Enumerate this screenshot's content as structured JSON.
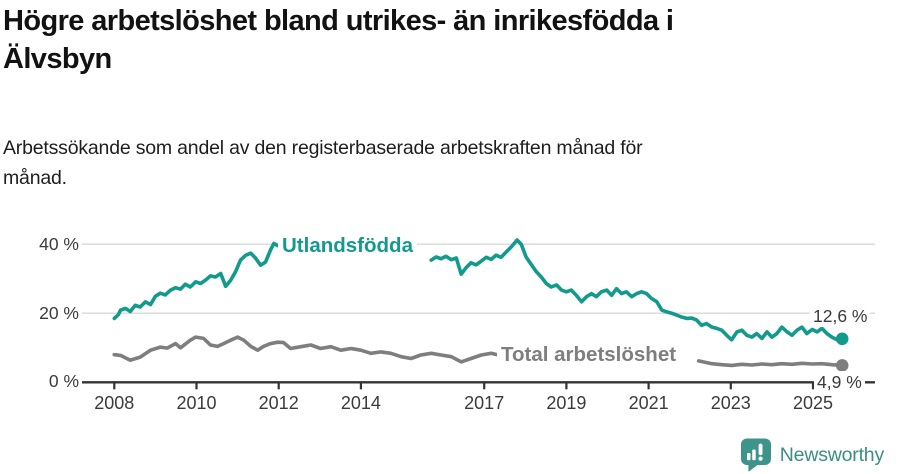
{
  "header": {
    "title_lines": [
      "Högre arbetslöshet bland utrikes- än inrikesfödda i",
      "Älvsbyn"
    ],
    "subtitle_lines": [
      "Arbetssökande som andel av den registerbaserade arbetskraften månad för",
      "månad."
    ]
  },
  "chart_data": {
    "type": "line",
    "title": "Högre arbetslöshet bland utrikes- än inrikesfödda i Älvsbyn",
    "subtitle": "Arbetssökande som andel av den registerbaserade arbetskraften månad för månad.",
    "xlabel": "",
    "ylabel": "",
    "xlim": [
      2007.9,
      2025.95
    ],
    "ylim": [
      0,
      43
    ],
    "grid": "horizontal",
    "legend_position": "inline-labels",
    "yticks": [
      {
        "value": 0,
        "label": "0 %"
      },
      {
        "value": 20,
        "label": "20 %"
      },
      {
        "value": 40,
        "label": "40 %"
      }
    ],
    "xticks": [
      {
        "value": 2008,
        "label": "2008"
      },
      {
        "value": 2010,
        "label": "2010"
      },
      {
        "value": 2012,
        "label": "2012"
      },
      {
        "value": 2014,
        "label": "2014"
      },
      {
        "value": 2017,
        "label": "2017"
      },
      {
        "value": 2019,
        "label": "2019"
      },
      {
        "value": 2021,
        "label": "2021"
      },
      {
        "value": 2023,
        "label": "2023"
      },
      {
        "value": 2025,
        "label": "2025"
      }
    ],
    "colors": {
      "utlandsfodda": "#129A8D",
      "total": "#7E7E7E",
      "grid": "#D8D8D8",
      "axis": "#333333"
    },
    "series": [
      {
        "name": "Utlandsfödda",
        "color": "#129A8D",
        "end_value": 12.6,
        "end_label": "12,6 %",
        "segments": [
          [
            [
              2008.0,
              18.5
            ],
            [
              2008.1,
              19.6
            ],
            [
              2008.15,
              20.9
            ],
            [
              2008.27,
              21.4
            ],
            [
              2008.39,
              20.5
            ],
            [
              2008.51,
              22.3
            ],
            [
              2008.63,
              21.8
            ],
            [
              2008.76,
              23.3
            ],
            [
              2008.88,
              22.5
            ],
            [
              2009.0,
              24.9
            ],
            [
              2009.12,
              25.8
            ],
            [
              2009.24,
              25.3
            ],
            [
              2009.37,
              26.7
            ],
            [
              2009.49,
              27.4
            ],
            [
              2009.61,
              27.0
            ],
            [
              2009.73,
              28.4
            ],
            [
              2009.85,
              27.6
            ],
            [
              2009.98,
              29.1
            ],
            [
              2010.1,
              28.6
            ],
            [
              2010.22,
              29.6
            ],
            [
              2010.34,
              30.8
            ],
            [
              2010.46,
              30.5
            ],
            [
              2010.59,
              31.5
            ],
            [
              2010.71,
              27.8
            ],
            [
              2010.83,
              29.5
            ],
            [
              2010.95,
              32.0
            ],
            [
              2011.07,
              35.4
            ],
            [
              2011.2,
              36.8
            ],
            [
              2011.32,
              37.4
            ],
            [
              2011.44,
              35.9
            ],
            [
              2011.56,
              33.9
            ],
            [
              2011.68,
              34.8
            ],
            [
              2011.8,
              38.3
            ],
            [
              2011.88,
              40.2
            ],
            [
              2011.98,
              39.6
            ]
          ],
          [
            [
              2015.71,
              35.4
            ],
            [
              2015.83,
              36.3
            ],
            [
              2015.95,
              35.8
            ],
            [
              2016.07,
              36.5
            ],
            [
              2016.2,
              35.5
            ],
            [
              2016.32,
              36.0
            ],
            [
              2016.44,
              31.3
            ],
            [
              2016.56,
              33.2
            ],
            [
              2016.68,
              34.6
            ],
            [
              2016.8,
              34.0
            ],
            [
              2016.93,
              35.1
            ],
            [
              2017.05,
              36.2
            ],
            [
              2017.17,
              35.6
            ],
            [
              2017.29,
              36.8
            ],
            [
              2017.41,
              36.2
            ],
            [
              2017.54,
              37.8
            ],
            [
              2017.66,
              39.2
            ],
            [
              2017.8,
              41.2
            ],
            [
              2017.9,
              40.0
            ],
            [
              2018.02,
              36.3
            ],
            [
              2018.15,
              34.0
            ],
            [
              2018.27,
              32.0
            ],
            [
              2018.39,
              30.5
            ],
            [
              2018.51,
              28.6
            ],
            [
              2018.63,
              27.6
            ],
            [
              2018.76,
              28.2
            ],
            [
              2018.88,
              26.7
            ],
            [
              2019.0,
              26.2
            ],
            [
              2019.12,
              26.7
            ],
            [
              2019.24,
              25.2
            ],
            [
              2019.37,
              23.3
            ],
            [
              2019.49,
              24.8
            ],
            [
              2019.61,
              25.7
            ],
            [
              2019.73,
              24.8
            ],
            [
              2019.85,
              26.2
            ],
            [
              2019.98,
              26.7
            ],
            [
              2020.1,
              25.2
            ],
            [
              2020.22,
              27.1
            ],
            [
              2020.34,
              25.7
            ],
            [
              2020.46,
              26.2
            ],
            [
              2020.59,
              24.8
            ],
            [
              2020.71,
              25.7
            ],
            [
              2020.83,
              26.2
            ],
            [
              2020.95,
              25.7
            ],
            [
              2021.07,
              24.3
            ],
            [
              2021.2,
              23.3
            ],
            [
              2021.32,
              20.9
            ],
            [
              2021.44,
              20.4
            ],
            [
              2021.56,
              20.0
            ],
            [
              2021.68,
              19.5
            ],
            [
              2021.8,
              18.9
            ],
            [
              2021.93,
              18.5
            ],
            [
              2022.05,
              18.6
            ],
            [
              2022.17,
              18.0
            ],
            [
              2022.29,
              16.5
            ],
            [
              2022.41,
              17.0
            ],
            [
              2022.54,
              16.0
            ],
            [
              2022.66,
              15.6
            ],
            [
              2022.78,
              15.1
            ],
            [
              2022.9,
              13.6
            ],
            [
              2023.02,
              12.3
            ],
            [
              2023.15,
              14.6
            ],
            [
              2023.27,
              15.1
            ],
            [
              2023.39,
              13.6
            ],
            [
              2023.51,
              13.1
            ],
            [
              2023.63,
              14.1
            ],
            [
              2023.76,
              12.7
            ],
            [
              2023.88,
              14.6
            ],
            [
              2024.0,
              13.1
            ],
            [
              2024.12,
              14.1
            ],
            [
              2024.24,
              16.0
            ],
            [
              2024.37,
              14.6
            ],
            [
              2024.49,
              13.6
            ],
            [
              2024.61,
              15.1
            ],
            [
              2024.73,
              16.0
            ],
            [
              2024.85,
              14.1
            ],
            [
              2024.98,
              15.3
            ],
            [
              2025.1,
              14.6
            ],
            [
              2025.22,
              15.6
            ],
            [
              2025.34,
              14.1
            ],
            [
              2025.46,
              13.1
            ],
            [
              2025.59,
              12.3
            ],
            [
              2025.71,
              12.6
            ]
          ]
        ]
      },
      {
        "name": "Total arbetslöshet",
        "color": "#7E7E7E",
        "end_value": 4.9,
        "end_label": "4,9 %",
        "segments": [
          [
            [
              2008.0,
              8.0
            ],
            [
              2008.15,
              7.8
            ],
            [
              2008.39,
              6.4
            ],
            [
              2008.63,
              7.3
            ],
            [
              2008.88,
              9.3
            ],
            [
              2009.12,
              10.2
            ],
            [
              2009.29,
              9.9
            ],
            [
              2009.49,
              11.2
            ],
            [
              2009.61,
              10.0
            ],
            [
              2009.85,
              12.2
            ],
            [
              2009.98,
              13.1
            ],
            [
              2010.17,
              12.7
            ],
            [
              2010.34,
              10.8
            ],
            [
              2010.51,
              10.4
            ],
            [
              2010.66,
              11.2
            ],
            [
              2010.83,
              12.2
            ],
            [
              2011.0,
              13.1
            ],
            [
              2011.15,
              12.2
            ],
            [
              2011.32,
              10.4
            ],
            [
              2011.49,
              9.3
            ],
            [
              2011.63,
              10.4
            ],
            [
              2011.8,
              11.2
            ],
            [
              2011.98,
              11.6
            ],
            [
              2012.12,
              11.5
            ],
            [
              2012.29,
              9.8
            ],
            [
              2012.54,
              10.3
            ],
            [
              2012.78,
              10.8
            ],
            [
              2013.02,
              9.8
            ],
            [
              2013.27,
              10.3
            ],
            [
              2013.51,
              9.3
            ],
            [
              2013.76,
              9.8
            ],
            [
              2014.0,
              9.3
            ],
            [
              2014.24,
              8.4
            ],
            [
              2014.49,
              8.8
            ],
            [
              2014.73,
              8.4
            ],
            [
              2014.98,
              7.4
            ],
            [
              2015.22,
              6.9
            ],
            [
              2015.46,
              7.9
            ],
            [
              2015.71,
              8.4
            ],
            [
              2015.95,
              7.9
            ],
            [
              2016.2,
              7.4
            ],
            [
              2016.44,
              5.9
            ],
            [
              2016.68,
              6.9
            ],
            [
              2016.93,
              7.9
            ],
            [
              2017.17,
              8.4
            ],
            [
              2017.34,
              7.9
            ]
          ],
          [
            [
              2022.22,
              6.2
            ],
            [
              2022.54,
              5.4
            ],
            [
              2022.78,
              5.1
            ],
            [
              2023.02,
              4.9
            ],
            [
              2023.27,
              5.2
            ],
            [
              2023.51,
              5.0
            ],
            [
              2023.76,
              5.3
            ],
            [
              2024.0,
              5.1
            ],
            [
              2024.24,
              5.4
            ],
            [
              2024.49,
              5.2
            ],
            [
              2024.73,
              5.5
            ],
            [
              2024.98,
              5.3
            ],
            [
              2025.22,
              5.4
            ],
            [
              2025.46,
              5.1
            ],
            [
              2025.71,
              4.9
            ]
          ]
        ]
      }
    ]
  },
  "footer": {
    "brand": "Newsworthy"
  }
}
